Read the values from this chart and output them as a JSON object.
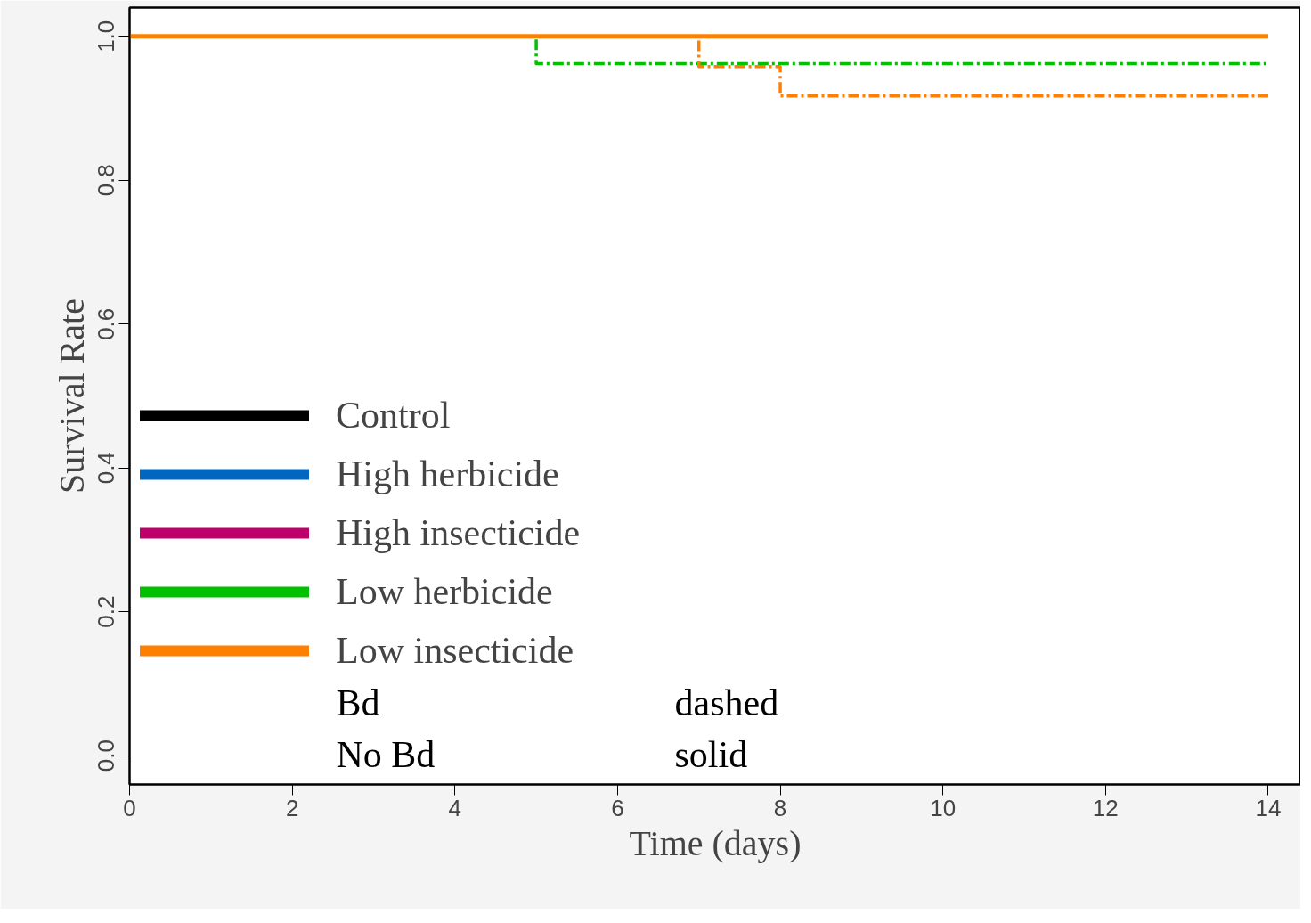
{
  "chart_data": {
    "type": "step",
    "xlabel": "Time (days)",
    "ylabel": "Survival Rate",
    "x": [
      0,
      5,
      7,
      8,
      14
    ],
    "series": [
      {
        "name": "Control",
        "color": "#000000",
        "values": [
          null,
          null,
          null,
          null,
          null
        ],
        "line_style": "solid"
      },
      {
        "name": "High herbicide",
        "color": "#0066c0",
        "values": [
          null,
          null,
          null,
          null,
          null
        ],
        "line_style": "solid"
      },
      {
        "name": "High insecticide",
        "color": "#c0006a",
        "values": [
          null,
          null,
          null,
          null,
          null
        ],
        "line_style": "solid"
      },
      {
        "name": "Low herbicide",
        "color": "#00c000",
        "values": [
          null,
          null,
          null,
          null,
          null
        ],
        "line_style": "solid"
      },
      {
        "name": "Low insecticide",
        "color": "#ff7f00",
        "values": [
          1.0,
          1.0,
          1.0,
          1.0,
          1.0
        ],
        "line_style": "solid"
      },
      {
        "color": "#00c000",
        "values": [
          1.0,
          0.962,
          0.962,
          0.962,
          0.962
        ],
        "line_style": "dashed"
      },
      {
        "color": "#ff7f00",
        "values": [
          1.0,
          1.0,
          0.958,
          0.917,
          0.917
        ],
        "line_style": "dashed"
      }
    ],
    "xlim": [
      0,
      14.4
    ],
    "ylim": [
      -0.04,
      1.04
    ],
    "xticks": [
      0,
      2,
      4,
      6,
      8,
      10,
      12,
      14
    ],
    "yticks": [
      {
        "value": 0,
        "label": "0.0"
      },
      {
        "value": 0.2,
        "label": "0.2"
      },
      {
        "value": 0.4,
        "label": "0.4"
      },
      {
        "value": 0.6,
        "label": "0.6"
      },
      {
        "value": 0.8,
        "label": "0.8"
      },
      {
        "value": 1.0,
        "label": "1.0"
      }
    ],
    "annotations": [
      "Bd",
      "dashed",
      "No Bd",
      "solid"
    ],
    "legend": "bottom left",
    "grid": false
  }
}
